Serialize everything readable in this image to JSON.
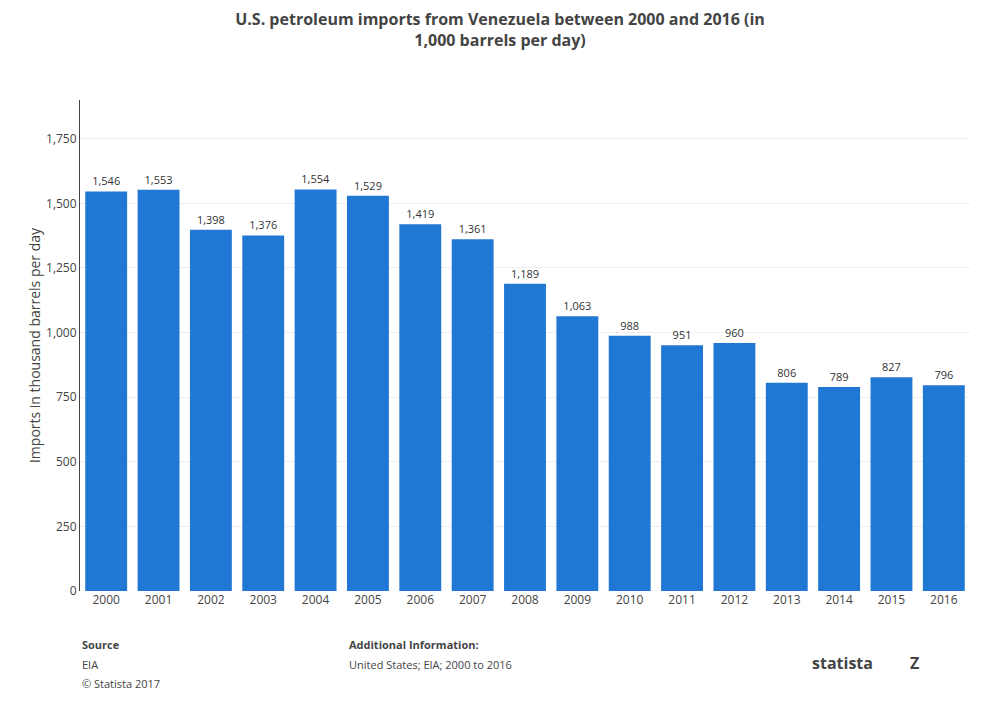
{
  "chart_data": {
    "type": "bar",
    "title": "U.S. petroleum imports from Venezuela between 2000 and 2016 (in\n1,000 barrels per day)",
    "ylabel": "Imports in thousand barrels per day",
    "categories": [
      "2000",
      "2001",
      "2002",
      "2003",
      "2004",
      "2005",
      "2006",
      "2007",
      "2008",
      "2009",
      "2010",
      "2011",
      "2012",
      "2013",
      "2014",
      "2015",
      "2016"
    ],
    "values": [
      1546,
      1553,
      1398,
      1376,
      1554,
      1529,
      1419,
      1361,
      1189,
      1063,
      988,
      951,
      960,
      806,
      789,
      827,
      796
    ],
    "value_labels": [
      "1,546",
      "1,553",
      "1,398",
      "1,376",
      "1,554",
      "1,529",
      "1,419",
      "1,361",
      "1,189",
      "1,063",
      "988",
      "951",
      "960",
      "806",
      "789",
      "827",
      "796"
    ],
    "data_labels": true,
    "color": "#2077D4",
    "ylim": [
      0,
      1900
    ],
    "yticks": [
      0,
      250,
      500,
      750,
      {
        "value": 1000,
        "label": "1,000"
      },
      {
        "value": 1250,
        "label": "1,250"
      },
      {
        "value": 1500,
        "label": "1,500"
      },
      {
        "value": 1750,
        "label": "1,750"
      }
    ],
    "grid": true,
    "annotations": [
      "Source",
      "EIA",
      "© Statista 2017",
      "Additional Information:",
      "United States; EIA; 2000 to 2016",
      "statista",
      "Z"
    ]
  }
}
